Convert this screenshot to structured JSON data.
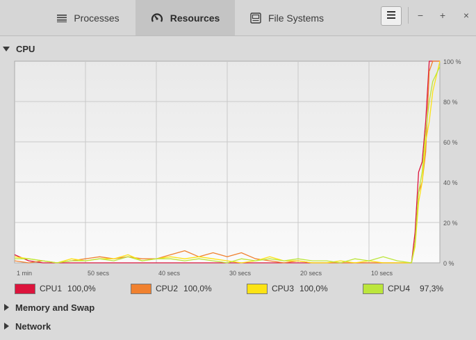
{
  "header": {
    "tabs": [
      {
        "label": "Processes",
        "icon": "list-icon",
        "active": false
      },
      {
        "label": "Resources",
        "icon": "gauge-icon",
        "active": true
      },
      {
        "label": "File Systems",
        "icon": "disk-icon",
        "active": false
      }
    ],
    "menu_icon": "hamburger-icon",
    "window_controls": {
      "minimize": "−",
      "maximize": "+",
      "close": "×"
    }
  },
  "sections": {
    "cpu": {
      "label": "CPU",
      "expanded": true
    },
    "memory": {
      "label": "Memory and Swap",
      "expanded": false
    },
    "network": {
      "label": "Network",
      "expanded": false
    }
  },
  "colors": {
    "cpu1": "#dc143c",
    "cpu2": "#f0812f",
    "cpu3": "#fce314",
    "cpu4": "#bce63c"
  },
  "legend": [
    {
      "name": "CPU1",
      "value": "100,0%",
      "color": "#dc143c"
    },
    {
      "name": "CPU2",
      "value": "100,0%",
      "color": "#f0812f"
    },
    {
      "name": "CPU3",
      "value": "100,0%",
      "color": "#fce314"
    },
    {
      "name": "CPU4",
      "value": "97,3%",
      "color": "#bce63c"
    }
  ],
  "chart_data": {
    "type": "line",
    "x_tick_labels": [
      "1 min",
      "50 secs",
      "40 secs",
      "30 secs",
      "20 secs",
      "10 secs"
    ],
    "y_tick_labels": [
      "100 %",
      "80 %",
      "60 %",
      "40 %",
      "20 %",
      "0 %"
    ],
    "ylim": [
      0,
      100
    ],
    "x": [
      60,
      58,
      56,
      54,
      52,
      50,
      48,
      46,
      44,
      42,
      40,
      38,
      36,
      34,
      32,
      30,
      28,
      26,
      24,
      22,
      20,
      18,
      16,
      14,
      12,
      10,
      8,
      6,
      4,
      3.5,
      3,
      2.5,
      2,
      1.5,
      1,
      0
    ],
    "series": [
      {
        "name": "CPU1",
        "color": "#dc143c",
        "values": [
          4,
          1,
          0,
          0,
          0,
          0,
          0,
          0,
          0,
          0,
          0,
          0,
          0,
          0,
          0,
          0,
          0,
          0,
          0,
          0,
          0,
          0,
          0,
          0,
          0,
          0,
          0,
          0,
          0,
          15,
          45,
          50,
          70,
          100,
          100,
          100
        ]
      },
      {
        "name": "CPU2",
        "color": "#f0812f",
        "values": [
          1,
          0,
          1,
          0,
          1,
          2,
          3,
          2,
          3,
          2,
          2,
          4,
          6,
          3,
          5,
          3,
          5,
          2,
          1,
          0,
          1,
          0,
          0,
          0,
          0,
          0,
          0,
          0,
          0,
          10,
          35,
          40,
          55,
          95,
          100,
          100
        ]
      },
      {
        "name": "CPU3",
        "color": "#fce314",
        "values": [
          3,
          2,
          1,
          0,
          2,
          1,
          2,
          2,
          4,
          1,
          2,
          3,
          2,
          3,
          2,
          1,
          0,
          1,
          3,
          1,
          1,
          0,
          0,
          1,
          0,
          1,
          0,
          0,
          0,
          8,
          30,
          40,
          60,
          70,
          85,
          100
        ]
      },
      {
        "name": "CPU4",
        "color": "#bce63c",
        "values": [
          2,
          2,
          1,
          0,
          1,
          1,
          2,
          1,
          3,
          1,
          2,
          2,
          1,
          2,
          1,
          0,
          2,
          1,
          2,
          1,
          2,
          1,
          1,
          0,
          2,
          1,
          3,
          1,
          0,
          10,
          35,
          45,
          65,
          80,
          90,
          97.3
        ]
      }
    ],
    "grid": true,
    "legend_placement": "bottom"
  }
}
